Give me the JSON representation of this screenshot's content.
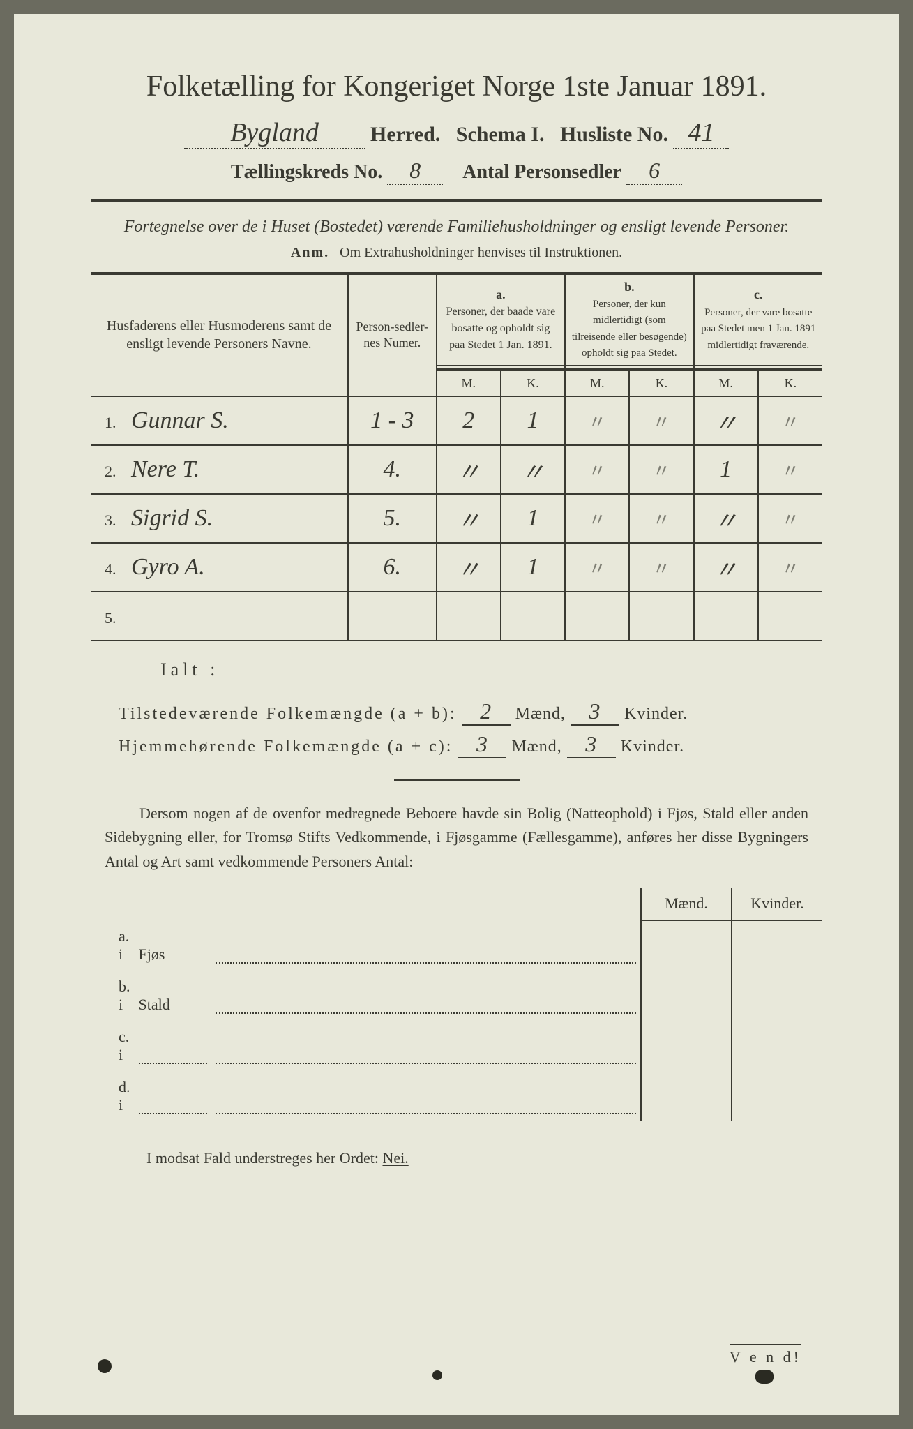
{
  "title": "Folketælling for Kongeriget Norge 1ste Januar 1891.",
  "header": {
    "herred_value": "Bygland",
    "herred_label": "Herred.",
    "schema_label": "Schema I.",
    "husliste_label": "Husliste No.",
    "husliste_value": "41",
    "kreds_label": "Tællingskreds No.",
    "kreds_value": "8",
    "antal_label": "Antal Personsedler",
    "antal_value": "6"
  },
  "subtitle": "Fortegnelse over de i Huset (Bostedet) værende Familiehusholdninger og ensligt levende Personer.",
  "anm": {
    "label": "Anm.",
    "text": "Om Extrahusholdninger henvises til Instruktionen."
  },
  "columns": {
    "names_header": "Husfaderens eller Husmoderens samt de ensligt levende Personers Navne.",
    "numer_header": "Person-sedler-nes Numer.",
    "a_label": "a.",
    "a_text": "Personer, der baade vare bosatte og opholdt sig paa Stedet 1 Jan. 1891.",
    "b_label": "b.",
    "b_text": "Personer, der kun midlertidigt (som tilreisende eller besøgende) opholdt sig paa Stedet.",
    "c_label": "c.",
    "c_text": "Personer, der vare bosatte paa Stedet men 1 Jan. 1891 midlertidigt fraværende.",
    "M": "M.",
    "K": "K."
  },
  "rows": [
    {
      "n": "1.",
      "name": "Gunnar S.",
      "numer": "1 - 3",
      "aM": "2",
      "aK": "1",
      "bM": "〃",
      "bK": "〃",
      "cM": "〃",
      "cK": "〃"
    },
    {
      "n": "2.",
      "name": "Nere T.",
      "numer": "4.",
      "aM": "〃",
      "aK": "〃",
      "bM": "〃",
      "bK": "〃",
      "cM": "1",
      "cK": "〃"
    },
    {
      "n": "3.",
      "name": "Sigrid S.",
      "numer": "5.",
      "aM": "〃",
      "aK": "1",
      "bM": "〃",
      "bK": "〃",
      "cM": "〃",
      "cK": "〃"
    },
    {
      "n": "4.",
      "name": "Gyro A.",
      "numer": "6.",
      "aM": "〃",
      "aK": "1",
      "bM": "〃",
      "bK": "〃",
      "cM": "〃",
      "cK": "〃"
    },
    {
      "n": "5.",
      "name": "",
      "numer": "",
      "aM": "",
      "aK": "",
      "bM": "",
      "bK": "",
      "cM": "",
      "cK": ""
    }
  ],
  "totals": {
    "ialt": "Ialt :",
    "line1_label": "Tilstedeværende Folkemængde (a + b):",
    "line1_m": "2",
    "line1_k": "3",
    "line2_label": "Hjemmehørende Folkemængde (a + c):",
    "line2_m": "3",
    "line2_k": "3",
    "maend": "Mænd,",
    "kvinder": "Kvinder."
  },
  "para": "Dersom nogen af de ovenfor medregnede Beboere havde sin Bolig (Natteophold) i Fjøs, Stald eller anden Sidebygning eller, for Tromsø Stifts Vedkommende, i Fjøsgamme (Fællesgamme), anføres her disse Bygningers Antal og Art samt vedkommende Personers Antal:",
  "side": {
    "maend": "Mænd.",
    "kvinder": "Kvinder.",
    "a": "a.  i",
    "a_word": "Fjøs",
    "b": "b.  i",
    "b_word": "Stald",
    "c": "c.  i",
    "d": "d.  i"
  },
  "nei_line": "I modsat Fald understreges her Ordet: ",
  "nei": "Nei.",
  "vend": "V e n d!"
}
